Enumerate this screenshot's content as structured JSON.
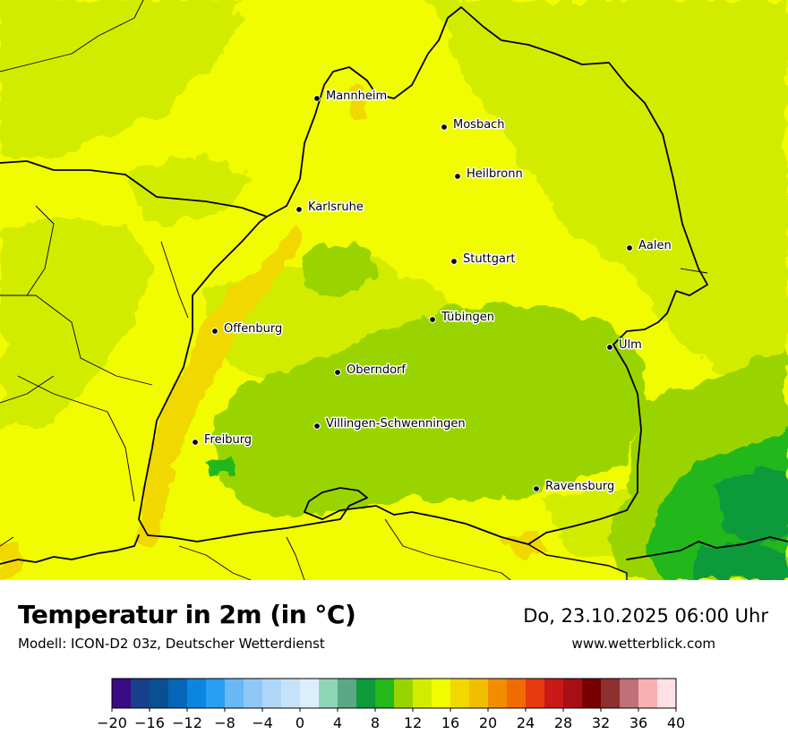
{
  "title": "Temperatur in 2m (in °C)",
  "subtitle": "Modell: ICON-D2 03z, Deutscher Wetterdienst",
  "datetime": "Do, 23.10.2025 06:00 Uhr",
  "website": "www.wetterblick.com",
  "cities": [
    {
      "name": "Mannheim"
    },
    {
      "name": "Mosbach"
    },
    {
      "name": "Heilbronn"
    },
    {
      "name": "Karlsruhe"
    },
    {
      "name": "Aalen"
    },
    {
      "name": "Stuttgart"
    },
    {
      "name": "Tübingen"
    },
    {
      "name": "Offenburg"
    },
    {
      "name": "Ulm"
    },
    {
      "name": "Oberndorf"
    },
    {
      "name": "Villingen-Schwenningen"
    },
    {
      "name": "Freiburg"
    },
    {
      "name": "Ravensburg"
    }
  ],
  "legend": {
    "min": -20,
    "max": 40,
    "step": 2,
    "tick_labels": [
      "−20",
      "−16",
      "−12",
      "−8",
      "−4",
      "0",
      "4",
      "8",
      "12",
      "16",
      "20",
      "24",
      "28",
      "32",
      "36",
      "40"
    ],
    "colors": [
      "#3b0a85",
      "#173f8a",
      "#0a4f92",
      "#0566b8",
      "#0b86e0",
      "#2a9ef0",
      "#69b8f4",
      "#8fc8f6",
      "#aed6f8",
      "#c6e2fa",
      "#dcedfc",
      "#8fd6b8",
      "#5aa885",
      "#0d9a3a",
      "#24b81a",
      "#9ad400",
      "#d2ec00",
      "#f2fc00",
      "#f0d800",
      "#f2be00",
      "#f28c00",
      "#f06c00",
      "#e83a10",
      "#c81818",
      "#a80f14",
      "#780000",
      "#8e3030",
      "#c07078",
      "#f8b0b0",
      "#ffe0e4"
    ]
  },
  "map_colors": {
    "base": "#f2fc00",
    "warm": "#f0d800",
    "mild": "#d2ec00",
    "cool": "#9ad400",
    "cold": "#24b81a",
    "coldest": "#0d9a3a"
  }
}
